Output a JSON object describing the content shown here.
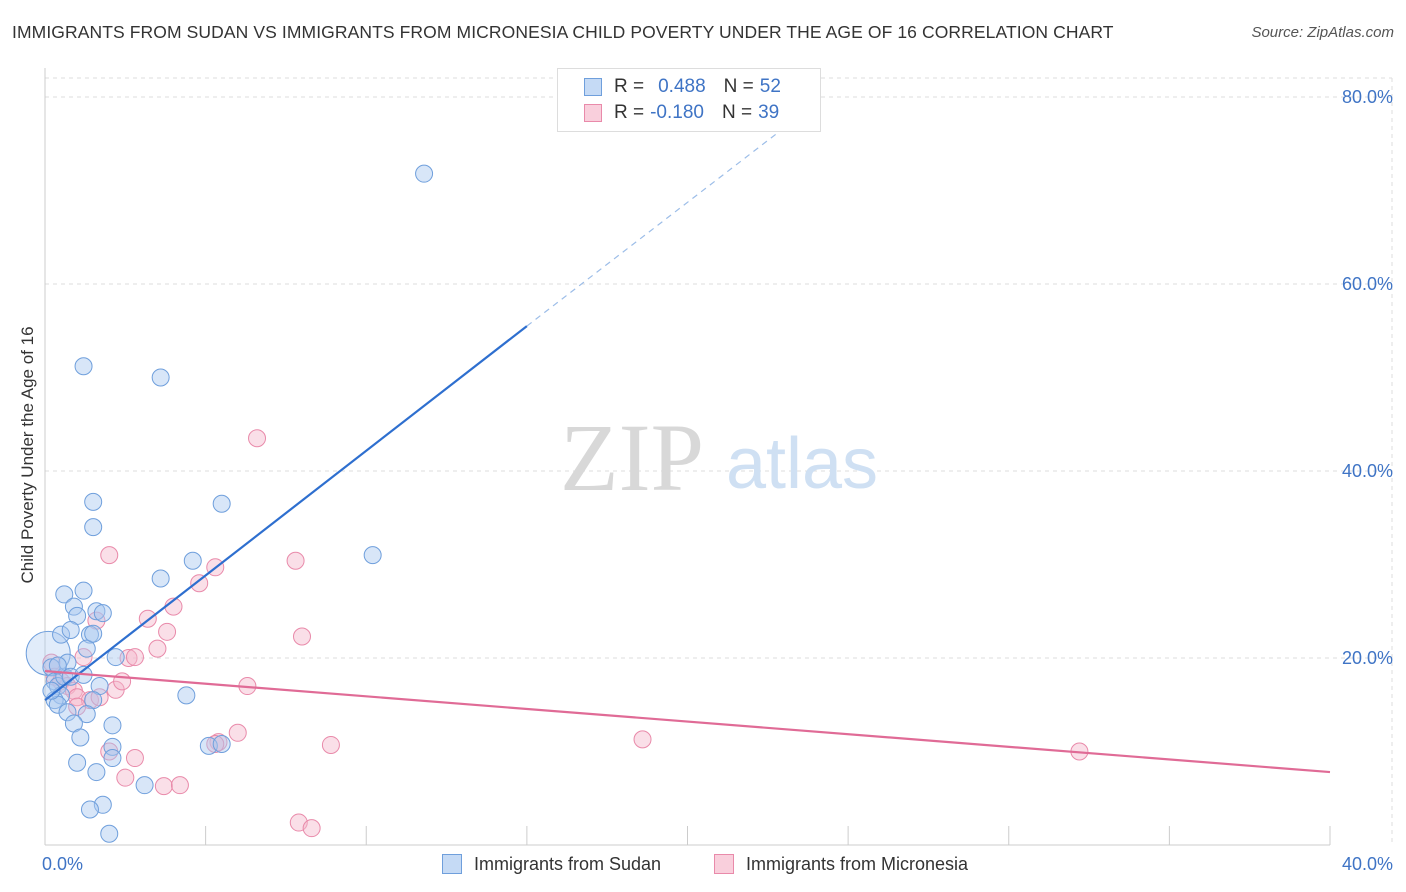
{
  "title": "IMMIGRANTS FROM SUDAN VS IMMIGRANTS FROM MICRONESIA CHILD POVERTY UNDER THE AGE OF 16 CORRELATION CHART",
  "source": "Source: ZipAtlas.com",
  "watermark": {
    "zip": "ZIP",
    "atlas": "atlas"
  },
  "colors": {
    "sudan_fill": "#a9c8f0",
    "sudan_stroke": "#6f9fdc",
    "sudan_line": "#2e6fcf",
    "micronesia_fill": "#f5b8cc",
    "micronesia_stroke": "#e98aaa",
    "micronesia_line": "#e06b96",
    "tick_label": "#3f74c5",
    "grid": "#dddddd"
  },
  "legend": {
    "rows": [
      {
        "r_label": "R =",
        "r_value": "0.488",
        "n_label": "N =",
        "n_value": "52"
      },
      {
        "r_label": "R =",
        "r_value": "-0.180",
        "n_label": "N =",
        "n_value": "39"
      }
    ]
  },
  "bottom_legend": {
    "sudan": "Immigrants from Sudan",
    "micronesia": "Immigrants from Micronesia"
  },
  "chart_data": {
    "type": "scatter",
    "title": "IMMIGRANTS FROM SUDAN VS IMMIGRANTS FROM MICRONESIA CHILD POVERTY UNDER THE AGE OF 16 CORRELATION CHART",
    "xlabel": "",
    "ylabel": "Child Poverty Under the Age of 16",
    "xlim": [
      0,
      40
    ],
    "ylim": [
      0,
      80
    ],
    "x_tick_labels": [
      {
        "value": 0,
        "label": "0.0%"
      },
      {
        "value": 40,
        "label": "40.0%"
      }
    ],
    "y_tick_labels": [
      {
        "value": 20,
        "label": "20.0%"
      },
      {
        "value": 40,
        "label": "40.0%"
      },
      {
        "value": 60,
        "label": "60.0%"
      },
      {
        "value": 80,
        "label": "80.0%"
      }
    ],
    "grid": true,
    "series": [
      {
        "name": "Immigrants from Sudan",
        "R": 0.488,
        "N": 52,
        "trend": {
          "x0": 0.0,
          "y0": 15.5,
          "x1": 15.0,
          "y1": 55.5,
          "dashed_to_x": 23.5,
          "dashed_to_y": 78.0
        },
        "points": [
          [
            0.1,
            20.5
          ],
          [
            0.2,
            19.0
          ],
          [
            0.3,
            17.5
          ],
          [
            0.4,
            17.0
          ],
          [
            0.5,
            16.0
          ],
          [
            0.3,
            15.5
          ],
          [
            0.4,
            15.0
          ],
          [
            0.6,
            18.0
          ],
          [
            0.7,
            19.5
          ],
          [
            0.8,
            18.0
          ],
          [
            0.5,
            22.5
          ],
          [
            0.6,
            26.8
          ],
          [
            0.9,
            25.5
          ],
          [
            1.2,
            27.2
          ],
          [
            1.0,
            24.5
          ],
          [
            0.8,
            23.0
          ],
          [
            1.4,
            22.5
          ],
          [
            1.3,
            21.0
          ],
          [
            1.6,
            25.0
          ],
          [
            1.8,
            24.8
          ],
          [
            1.5,
            22.6
          ],
          [
            1.2,
            18.2
          ],
          [
            1.7,
            17.0
          ],
          [
            1.5,
            15.5
          ],
          [
            1.3,
            14.0
          ],
          [
            0.7,
            14.2
          ],
          [
            0.9,
            13.0
          ],
          [
            2.1,
            12.8
          ],
          [
            1.1,
            11.5
          ],
          [
            2.1,
            10.5
          ],
          [
            2.1,
            9.3
          ],
          [
            1.0,
            8.8
          ],
          [
            1.6,
            7.8
          ],
          [
            3.1,
            6.4
          ],
          [
            1.8,
            4.3
          ],
          [
            1.4,
            3.8
          ],
          [
            2.0,
            1.2
          ],
          [
            2.2,
            20.1
          ],
          [
            1.2,
            51.2
          ],
          [
            3.6,
            50.0
          ],
          [
            1.5,
            36.7
          ],
          [
            1.5,
            34.0
          ],
          [
            5.5,
            36.5
          ],
          [
            4.6,
            30.4
          ],
          [
            3.6,
            28.5
          ],
          [
            4.4,
            16.0
          ],
          [
            5.1,
            10.6
          ],
          [
            5.5,
            10.8
          ],
          [
            10.2,
            31.0
          ],
          [
            11.8,
            71.8
          ],
          [
            0.4,
            19.2
          ],
          [
            0.2,
            16.5
          ]
        ]
      },
      {
        "name": "Immigrants from Micronesia",
        "R": -0.18,
        "N": 39,
        "trend": {
          "x0": 0.0,
          "y0": 18.6,
          "x1": 40.0,
          "y1": 7.8
        },
        "points": [
          [
            0.2,
            19.5
          ],
          [
            0.3,
            18.0
          ],
          [
            0.5,
            17.5
          ],
          [
            0.7,
            17.0
          ],
          [
            0.9,
            16.5
          ],
          [
            1.0,
            15.8
          ],
          [
            1.4,
            15.5
          ],
          [
            1.7,
            15.8
          ],
          [
            2.2,
            16.6
          ],
          [
            2.4,
            17.5
          ],
          [
            1.2,
            20.1
          ],
          [
            2.6,
            20.0
          ],
          [
            2.8,
            20.1
          ],
          [
            3.5,
            21.0
          ],
          [
            3.8,
            22.8
          ],
          [
            3.2,
            24.2
          ],
          [
            1.6,
            24.0
          ],
          [
            2.0,
            31.0
          ],
          [
            4.0,
            25.5
          ],
          [
            4.8,
            28.0
          ],
          [
            5.3,
            29.7
          ],
          [
            7.8,
            30.4
          ],
          [
            8.0,
            22.3
          ],
          [
            6.3,
            17.0
          ],
          [
            6.0,
            12.0
          ],
          [
            5.4,
            11.0
          ],
          [
            5.3,
            10.8
          ],
          [
            2.0,
            10.0
          ],
          [
            2.8,
            9.3
          ],
          [
            2.5,
            7.2
          ],
          [
            3.7,
            6.3
          ],
          [
            4.2,
            6.4
          ],
          [
            8.9,
            10.7
          ],
          [
            7.9,
            2.4
          ],
          [
            8.3,
            1.8
          ],
          [
            6.6,
            43.5
          ],
          [
            18.6,
            11.3
          ],
          [
            32.2,
            10.0
          ],
          [
            1.0,
            14.8
          ]
        ]
      }
    ]
  }
}
